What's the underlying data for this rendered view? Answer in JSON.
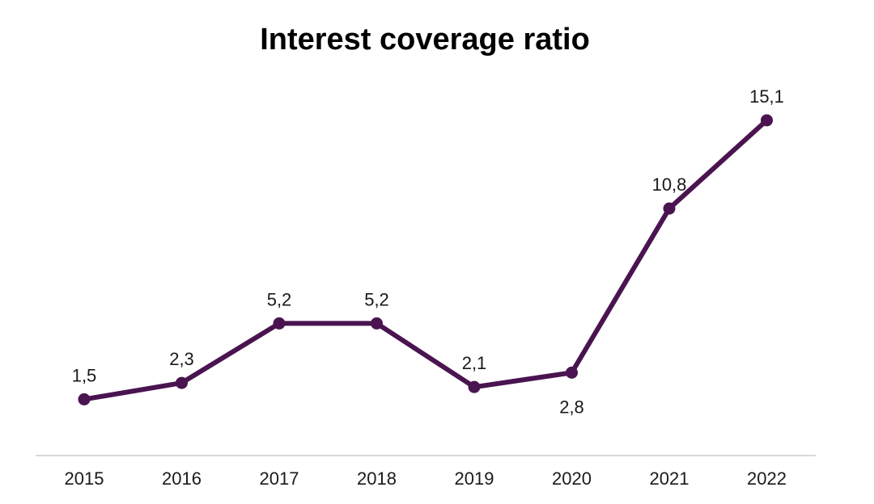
{
  "chart_data": {
    "type": "line",
    "title": "Interest coverage ratio",
    "xlabel": "",
    "ylabel": "",
    "categories": [
      "2015",
      "2016",
      "2017",
      "2018",
      "2019",
      "2020",
      "2021",
      "2022"
    ],
    "series": [
      {
        "values": [
          1.5,
          2.3,
          5.2,
          5.2,
          2.1,
          2.8,
          10.8,
          15.1
        ],
        "data_labels": [
          "1,5",
          "2,3",
          "5,2",
          "5,2",
          "2,1",
          "2,8",
          "10,8",
          "15,1"
        ],
        "color": "#4a1450"
      }
    ],
    "ylim": [
      0,
      16
    ],
    "grid": false,
    "legend": "none",
    "axis_line_color": "#d9d9d9"
  }
}
